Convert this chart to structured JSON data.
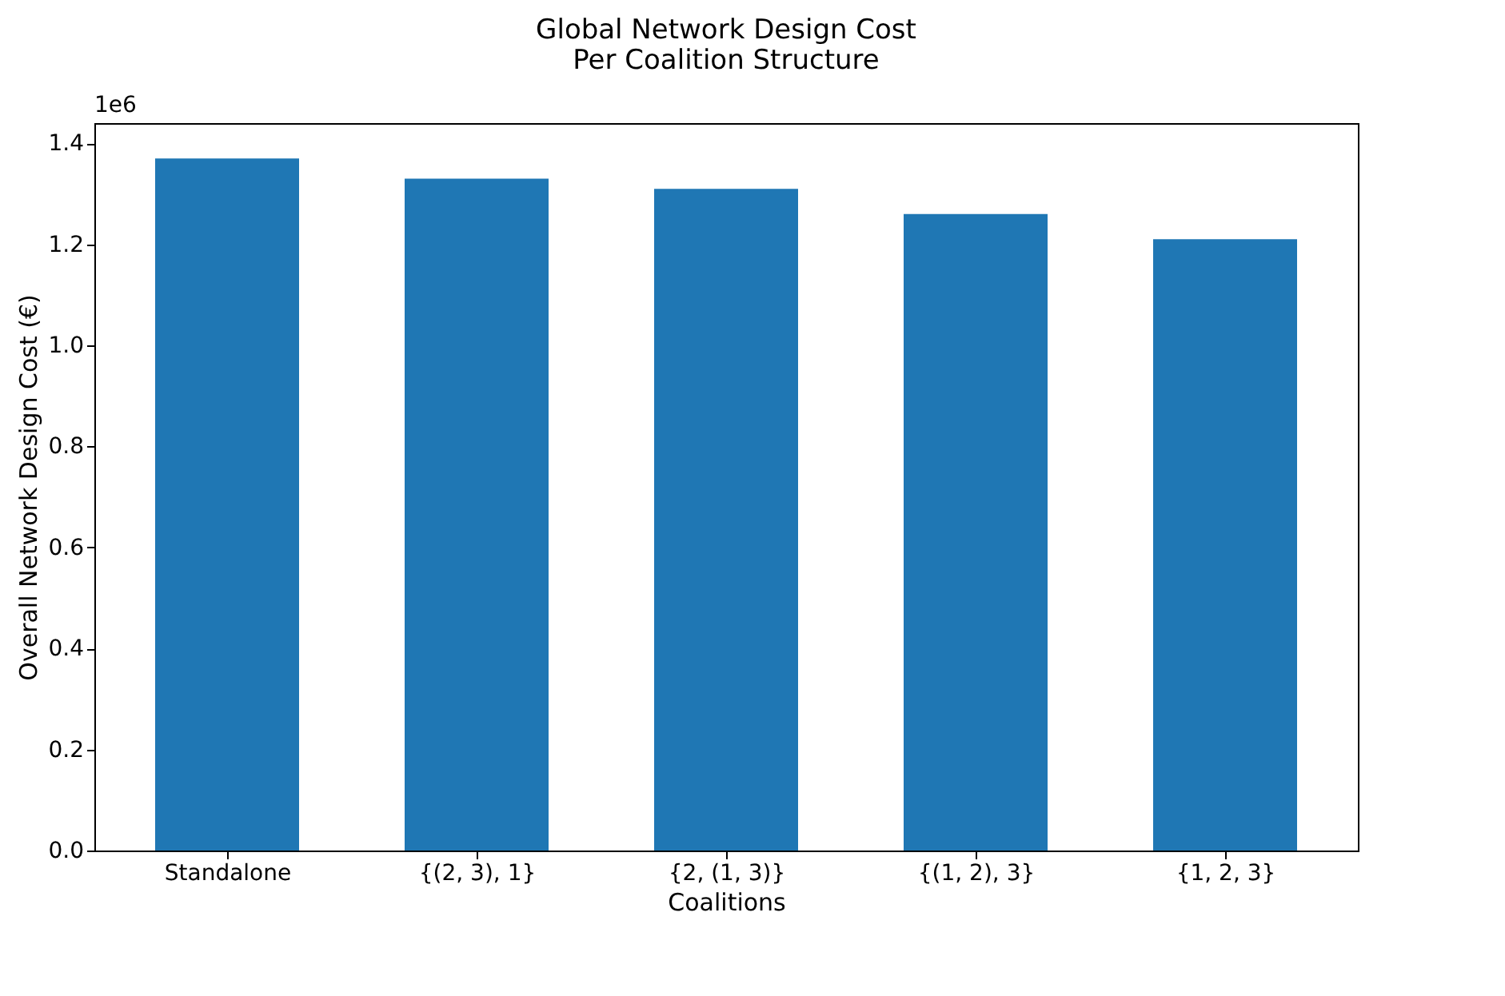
{
  "chart_data": {
    "type": "bar",
    "title": "Global Network Design Cost\nPer Coalition Structure",
    "xlabel": "Coalitions",
    "ylabel": "Overall Network Design Cost (€)",
    "categories": [
      "Standalone",
      "{(2, 3), 1}",
      "{2, (1, 3)}",
      "{(1, 2), 3}",
      "{1, 2, 3}"
    ],
    "values": [
      1.37,
      1.33,
      1.31,
      1.26,
      1.21
    ],
    "color": "#1f77b4",
    "ylim": [
      0,
      1.44
    ],
    "yticks": [
      {
        "value": 0,
        "label": "0.0"
      },
      {
        "value": 0.2,
        "label": "0.2"
      },
      {
        "value": 0.4,
        "label": "0.4"
      },
      {
        "value": 0.6,
        "label": "0.6"
      },
      {
        "value": 0.8,
        "label": "0.8"
      },
      {
        "value": 1.0,
        "label": "1.0"
      },
      {
        "value": 1.2,
        "label": "1.2"
      },
      {
        "value": 1.4,
        "label": "1.4"
      }
    ],
    "annotations": [
      "1e6"
    ],
    "grid": false
  }
}
